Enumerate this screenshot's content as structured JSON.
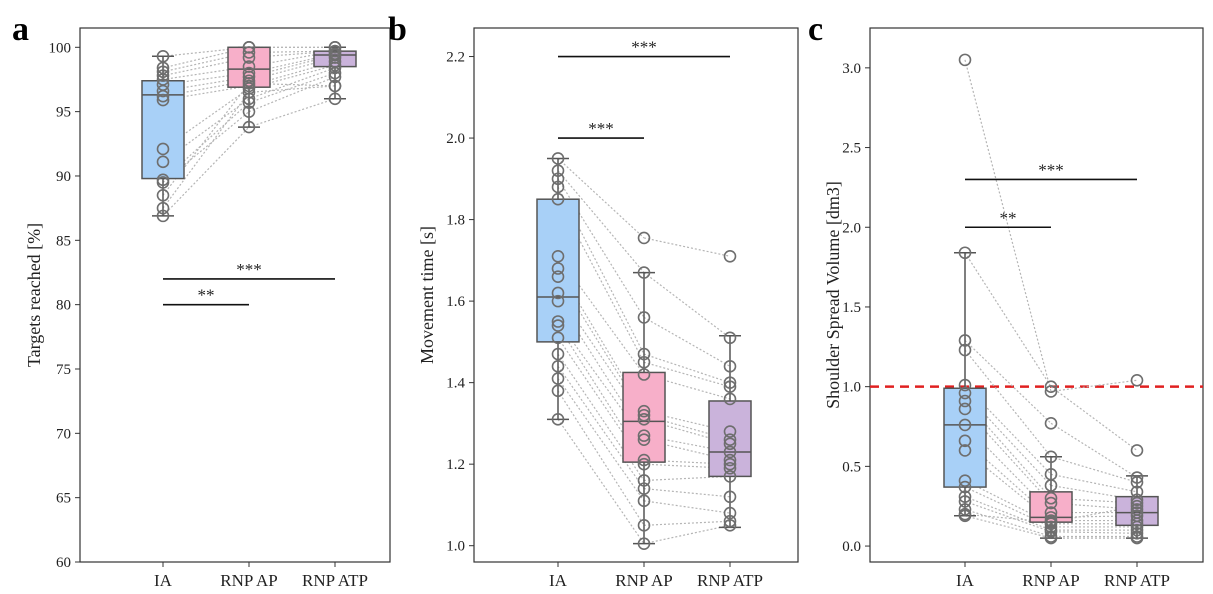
{
  "chart_data": [
    {
      "type": "box",
      "panel_label": "a",
      "ylabel": "Targets reached [%]",
      "ylim": [
        60,
        101.5
      ],
      "yticks": [
        60,
        65,
        70,
        75,
        80,
        85,
        90,
        95,
        100
      ],
      "categories": [
        "IA",
        "RNP AP",
        "RNP ATP"
      ],
      "colors": [
        "#a8d0f7",
        "#f7afc9",
        "#cab3db"
      ],
      "boxes": [
        {
          "q1": 89.8,
          "median": 96.3,
          "q3": 97.4,
          "whisker_low": 86.9,
          "whisker_high": 99.3
        },
        {
          "q1": 96.9,
          "median": 98.3,
          "q3": 100.0,
          "whisker_low": 93.8,
          "whisker_high": 100.0
        },
        {
          "q1": 98.5,
          "median": 99.4,
          "q3": 99.7,
          "whisker_low": 96.0,
          "whisker_high": 100.0
        }
      ],
      "paired_values": [
        [
          99.3,
          98.4,
          98.1,
          97.8,
          97.5,
          97.1,
          96.6,
          96.2,
          95.9,
          92.1,
          91.1,
          89.7,
          89.5,
          88.5,
          87.5,
          86.9
        ],
        [
          100.0,
          100.0,
          99.6,
          99.2,
          98.5,
          98.0,
          97.7,
          97.4,
          97.0,
          96.8,
          96.0,
          95.7,
          95.0,
          97.2,
          96.5,
          93.8
        ],
        [
          100.0,
          100.0,
          99.7,
          99.7,
          99.7,
          99.5,
          99.4,
          99.2,
          98.9,
          98.6,
          98.4,
          98.0,
          97.7,
          97.0,
          97.0,
          96.0
        ]
      ],
      "significance": [
        {
          "from": 0,
          "to": 1,
          "y": 80.0,
          "label": "**"
        },
        {
          "from": 0,
          "to": 2,
          "y": 82.0,
          "label": "***"
        }
      ]
    },
    {
      "type": "box",
      "panel_label": "b",
      "ylabel": "Movement time [s]",
      "ylim": [
        0.96,
        2.27
      ],
      "yticks": [
        1.0,
        1.2,
        1.4,
        1.6,
        1.8,
        2.0,
        2.2
      ],
      "ytick_labels": [
        "1.0",
        "1.2",
        "1.4",
        "1.6",
        "1.8",
        "2.0",
        "2.2"
      ],
      "categories": [
        "IA",
        "RNP AP",
        "RNP ATP"
      ],
      "colors": [
        "#a8d0f7",
        "#f7afc9",
        "#cab3db"
      ],
      "boxes": [
        {
          "q1": 1.5,
          "median": 1.61,
          "q3": 1.85,
          "whisker_low": 1.31,
          "whisker_high": 1.95
        },
        {
          "q1": 1.205,
          "median": 1.305,
          "q3": 1.425,
          "whisker_low": 1.005,
          "whisker_high": 1.67
        },
        {
          "q1": 1.17,
          "median": 1.23,
          "q3": 1.355,
          "whisker_low": 1.045,
          "whisker_high": 1.515
        }
      ],
      "paired_values": [
        [
          1.95,
          1.92,
          1.9,
          1.88,
          1.85,
          1.71,
          1.68,
          1.66,
          1.62,
          1.6,
          1.55,
          1.54,
          1.51,
          1.47,
          1.44,
          1.41,
          1.38,
          1.31
        ],
        [
          1.755,
          1.67,
          1.56,
          1.47,
          1.45,
          1.42,
          1.33,
          1.32,
          1.31,
          1.27,
          1.26,
          1.21,
          1.2,
          1.16,
          1.14,
          1.11,
          1.05,
          1.005
        ],
        [
          1.71,
          1.51,
          1.44,
          1.4,
          1.39,
          1.36,
          1.28,
          1.26,
          1.25,
          1.23,
          1.21,
          1.2,
          1.19,
          1.17,
          1.12,
          1.08,
          1.06,
          1.05
        ]
      ],
      "significance": [
        {
          "from": 0,
          "to": 1,
          "y": 2.0,
          "label": "***"
        },
        {
          "from": 0,
          "to": 2,
          "y": 2.2,
          "label": "***"
        }
      ]
    },
    {
      "type": "box",
      "panel_label": "c",
      "ylabel": "Shoulder Spread Volume [dm3]",
      "ylim": [
        -0.1,
        3.25
      ],
      "yticks": [
        0.0,
        0.5,
        1.0,
        1.5,
        2.0,
        2.5,
        3.0
      ],
      "ytick_labels": [
        "0.0",
        "0.5",
        "1.0",
        "1.5",
        "2.0",
        "2.5",
        "3.0"
      ],
      "categories": [
        "IA",
        "RNP AP",
        "RNP ATP"
      ],
      "colors": [
        "#a8d0f7",
        "#f7afc9",
        "#cab3db"
      ],
      "boxes": [
        {
          "q1": 0.37,
          "median": 0.76,
          "q3": 0.99,
          "whisker_low": 0.19,
          "whisker_high": 1.84
        },
        {
          "q1": 0.15,
          "median": 0.18,
          "q3": 0.34,
          "whisker_low": 0.05,
          "whisker_high": 0.56
        },
        {
          "q1": 0.13,
          "median": 0.21,
          "q3": 0.31,
          "whisker_low": 0.05,
          "whisker_high": 0.44
        }
      ],
      "paired_values": [
        [
          3.05,
          1.84,
          1.29,
          1.23,
          1.01,
          0.96,
          0.91,
          0.86,
          0.76,
          0.66,
          0.6,
          0.41,
          0.37,
          0.31,
          0.28,
          0.23,
          0.19,
          0.2
        ],
        [
          0.97,
          1.0,
          0.77,
          0.56,
          0.45,
          0.38,
          0.3,
          0.27,
          0.21,
          0.18,
          0.16,
          0.14,
          0.12,
          0.1,
          0.09,
          0.06,
          0.05,
          0.15
        ],
        [
          1.04,
          0.6,
          0.43,
          0.4,
          0.34,
          0.29,
          0.27,
          0.23,
          0.21,
          0.19,
          0.16,
          0.14,
          0.12,
          0.1,
          0.08,
          0.06,
          0.05,
          0.25
        ]
      ],
      "reference_line": {
        "y": 1.0,
        "color": "#e02020",
        "style": "dashed"
      },
      "significance": [
        {
          "from": 0,
          "to": 1,
          "y": 2.0,
          "label": "**"
        },
        {
          "from": 0,
          "to": 2,
          "y": 2.3,
          "label": "***"
        }
      ]
    }
  ]
}
